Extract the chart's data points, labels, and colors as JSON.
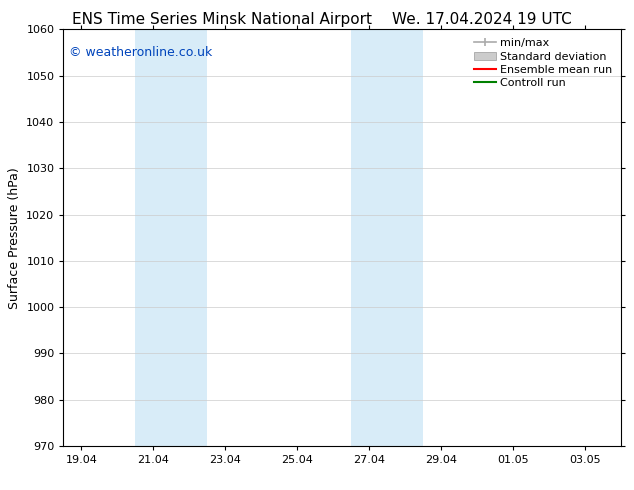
{
  "title_left": "ENS Time Series Minsk National Airport",
  "title_right": "We. 17.04.2024 19 UTC",
  "ylabel": "Surface Pressure (hPa)",
  "ylim": [
    970,
    1060
  ],
  "yticks": [
    970,
    980,
    990,
    1000,
    1010,
    1020,
    1030,
    1040,
    1050,
    1060
  ],
  "xtick_labels": [
    "19.04",
    "21.04",
    "23.04",
    "25.04",
    "27.04",
    "29.04",
    "01.05",
    "03.05"
  ],
  "xtick_positions": [
    0,
    2,
    4,
    6,
    8,
    10,
    12,
    14
  ],
  "xlim": [
    -0.5,
    15.0
  ],
  "shaded_bands": [
    {
      "x_start": 1.5,
      "x_end": 3.5,
      "color": "#d8ecf8"
    },
    {
      "x_start": 7.5,
      "x_end": 9.5,
      "color": "#d8ecf8"
    }
  ],
  "legend_items": [
    {
      "label": "min/max",
      "color": "#aaaaaa",
      "style": "line_with_caps"
    },
    {
      "label": "Standard deviation",
      "color": "#cccccc",
      "style": "filled_rect"
    },
    {
      "label": "Ensemble mean run",
      "color": "#ff0000",
      "style": "line"
    },
    {
      "label": "Controll run",
      "color": "#008000",
      "style": "line"
    }
  ],
  "watermark_text": "© weatheronline.co.uk",
  "watermark_color": "#0044bb",
  "watermark_fontsize": 9,
  "bg_color": "#ffffff",
  "grid_color": "#cccccc",
  "title_fontsize": 11,
  "axis_label_fontsize": 9,
  "tick_fontsize": 8,
  "legend_fontsize": 8
}
